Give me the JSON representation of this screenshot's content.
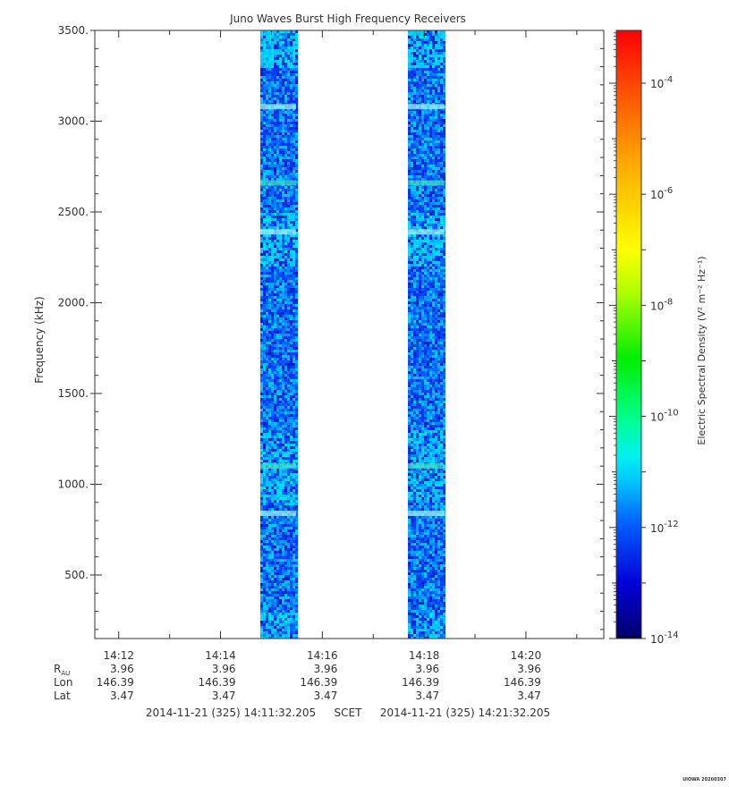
{
  "chart_data": {
    "type": "heatmap",
    "title": "Juno Waves Burst High Frequency Receivers",
    "ylabel": "Frequency (kHz)",
    "ylim": [
      150,
      3500
    ],
    "y_ticks": [
      "3500.",
      "3000.",
      "2500.",
      "2000.",
      "1500.",
      "1000.",
      "500."
    ],
    "y_tick_values": [
      3500,
      3000,
      2500,
      2000,
      1500,
      1000,
      500
    ],
    "x_ticks": [
      "14:12",
      "14:14",
      "14:16",
      "14:18",
      "14:20"
    ],
    "x_tick_minutes": [
      12,
      14,
      16,
      18,
      20
    ],
    "xlim_minutes": [
      11.53,
      21.53
    ],
    "data_intervals": [
      {
        "start": "14:14:47",
        "end": "14:15:29"
      },
      {
        "start": "14:17:41",
        "end": "14:18:24"
      }
    ],
    "bright_bands_khz": [
      3080,
      2660,
      2390,
      1100,
      840
    ],
    "colorbar": {
      "label": "Electric Spectral Density (V² m⁻² Hz⁻¹)",
      "ticks": [
        "10-4",
        "10-6",
        "10-8",
        "10-10",
        "10-12",
        "10-14"
      ],
      "tick_exponents": [
        -4,
        -6,
        -8,
        -10,
        -12,
        -14
      ],
      "range_exponents": [
        -14,
        -3.05
      ],
      "scale": "log"
    },
    "ephemeris": {
      "rows": [
        {
          "label": "R",
          "sub": "AU",
          "values": [
            "3.96",
            "3.96",
            "3.96",
            "3.96",
            "3.96"
          ]
        },
        {
          "label": "Lon",
          "values": [
            "146.39",
            "146.39",
            "146.39",
            "146.39",
            "146.39"
          ]
        },
        {
          "label": "Lat",
          "values": [
            "3.47",
            "3.47",
            "3.47",
            "3.47",
            "3.47"
          ]
        }
      ]
    },
    "time_range": {
      "start": "2014-11-21 (325) 14:11:32.205",
      "label": "SCET",
      "end": "2014-11-21 (325) 14:21:32.205"
    },
    "credit": "UIOWA 20200307"
  }
}
